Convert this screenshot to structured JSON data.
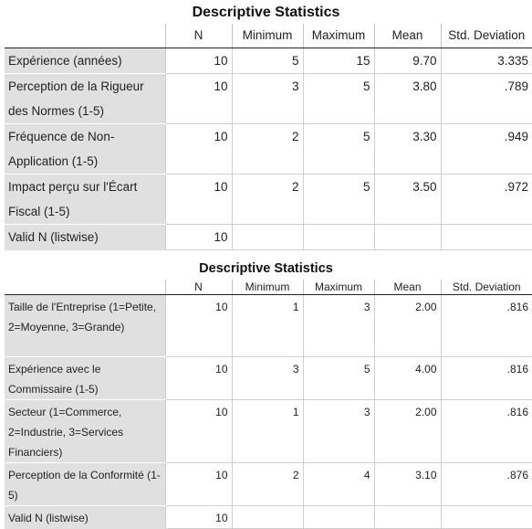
{
  "tables": [
    {
      "title": "Descriptive Statistics",
      "columns": [
        "N",
        "Minimum",
        "Maximum",
        "Mean",
        "Std. Deviation"
      ],
      "rows": [
        {
          "label": "Expérience (années)",
          "n": "10",
          "min": "5",
          "max": "15",
          "mean": "9.70",
          "sd": "3.335"
        },
        {
          "label": "Perception de la Rigueur des Normes (1-5)",
          "n": "10",
          "min": "3",
          "max": "5",
          "mean": "3.80",
          "sd": ".789"
        },
        {
          "label": "Fréquence de Non-Application (1-5)",
          "n": "10",
          "min": "2",
          "max": "5",
          "mean": "3.30",
          "sd": ".949"
        },
        {
          "label": "Impact perçu sur l'Écart Fiscal (1-5)",
          "n": "10",
          "min": "2",
          "max": "5",
          "mean": "3.50",
          "sd": ".972"
        },
        {
          "label": "Valid N (listwise)",
          "n": "10",
          "min": "",
          "max": "",
          "mean": "",
          "sd": ""
        }
      ]
    },
    {
      "title": "Descriptive Statistics",
      "columns": [
        "N",
        "Minimum",
        "Maximum",
        "Mean",
        "Std. Deviation"
      ],
      "rows": [
        {
          "label": "Taille de l'Entreprise (1=Petite, 2=Moyenne, 3=Grande)",
          "n": "10",
          "min": "1",
          "max": "3",
          "mean": "2.00",
          "sd": ".816"
        },
        {
          "label": "Expérience avec le Commissaire (1-5)",
          "n": "10",
          "min": "3",
          "max": "5",
          "mean": "4.00",
          "sd": ".816"
        },
        {
          "label": "Secteur (1=Commerce, 2=Industrie, 3=Services Financiers)",
          "n": "10",
          "min": "1",
          "max": "3",
          "mean": "2.00",
          "sd": ".816"
        },
        {
          "label": "Perception de la Conformité (1-5)",
          "n": "10",
          "min": "2",
          "max": "4",
          "mean": "3.10",
          "sd": ".876"
        },
        {
          "label": "Valid N (listwise)",
          "n": "10",
          "min": "",
          "max": "",
          "mean": "",
          "sd": ""
        }
      ]
    }
  ]
}
